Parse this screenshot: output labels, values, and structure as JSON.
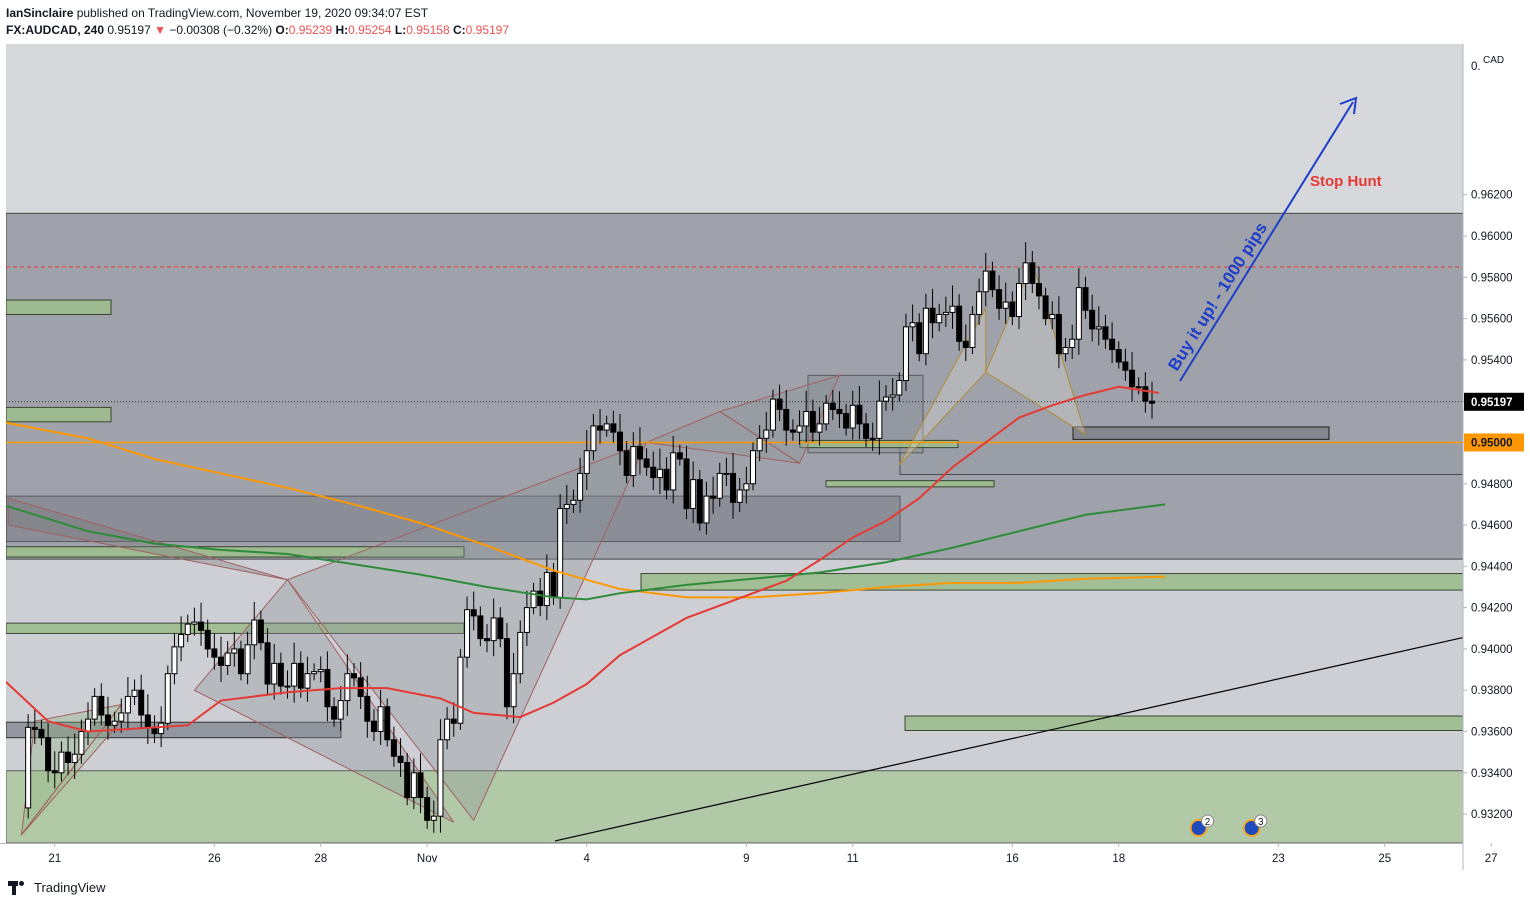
{
  "header": {
    "line1_user": "IanSinclaire",
    "line1_rest": " published on TradingView.com, November 19, 2020 09:34:07 EST",
    "symbol": "FX:AUDCAD, 240",
    "last": "0.95197",
    "arrow": "▼",
    "change": "−0.00308 (−0.32%)",
    "o_label": "O:",
    "o_value": "0.95239",
    "h_label": "H:",
    "h_value": "0.95254",
    "l_label": "L:",
    "l_value": "0.95158",
    "c_label": "C:",
    "c_value": "0.95197"
  },
  "footer": {
    "brand": "TradingView"
  },
  "colors": {
    "red_ma": "#e53935",
    "green_ma": "#2e8b3a",
    "orange_ma": "#ff9800",
    "bull": "#ffffff",
    "bear": "#000000",
    "zone_green": "#9ebd8f",
    "zone_grey": "#8a8e97",
    "annotation_blue": "#1e3ec9",
    "stop_hunt": "#e53935",
    "price_label_bg": "#000000",
    "level_label_bg": "#ff9800"
  },
  "chart_data": {
    "type": "candlestick",
    "symbol": "FX:AUDCAD",
    "timeframe": "240",
    "currency_label": "CAD",
    "y_range": [
      0.9306,
      0.9693
    ],
    "y_ticks": [
      0.932,
      0.934,
      0.936,
      0.938,
      0.94,
      0.942,
      0.944,
      0.946,
      0.948,
      0.95,
      0.952,
      0.954,
      0.956,
      0.958,
      0.96,
      0.962
    ],
    "y_tick_labels": [
      "0.93200",
      "0.93400",
      "0.93600",
      "0.93800",
      "0.94000",
      "0.94200",
      "0.94400",
      "0.94600",
      "0.94800",
      "0.95000",
      "0.95200",
      "0.95400",
      "0.95600",
      "0.95800",
      "0.96000",
      "0.96200"
    ],
    "y_top_label": "0.",
    "x_tick_labels": [
      {
        "label": "21",
        "bar": 5
      },
      {
        "label": "26",
        "bar": 29
      },
      {
        "label": "28",
        "bar": 45
      },
      {
        "label": "Nov",
        "bar": 61
      },
      {
        "label": "4",
        "bar": 85
      },
      {
        "label": "9",
        "bar": 109
      },
      {
        "label": "11",
        "bar": 125
      },
      {
        "label": "16",
        "bar": 149
      },
      {
        "label": "18",
        "bar": 165
      },
      {
        "label": "23",
        "bar": 189
      },
      {
        "label": "25",
        "bar": 205
      },
      {
        "label": "27",
        "bar": 221
      }
    ],
    "current_price_label": "0.95197",
    "current_price": 0.95197,
    "level_label": "0.95000",
    "level_price": 0.95,
    "stop_hunt": {
      "label": "Stop Hunt",
      "price": 0.9585
    },
    "annotation_text": "Buy it up! - 1000 pips",
    "events": [
      {
        "label": "2",
        "bar": 177
      },
      {
        "label": "3",
        "bar": 185
      }
    ],
    "legend": "none",
    "grid": false
  }
}
